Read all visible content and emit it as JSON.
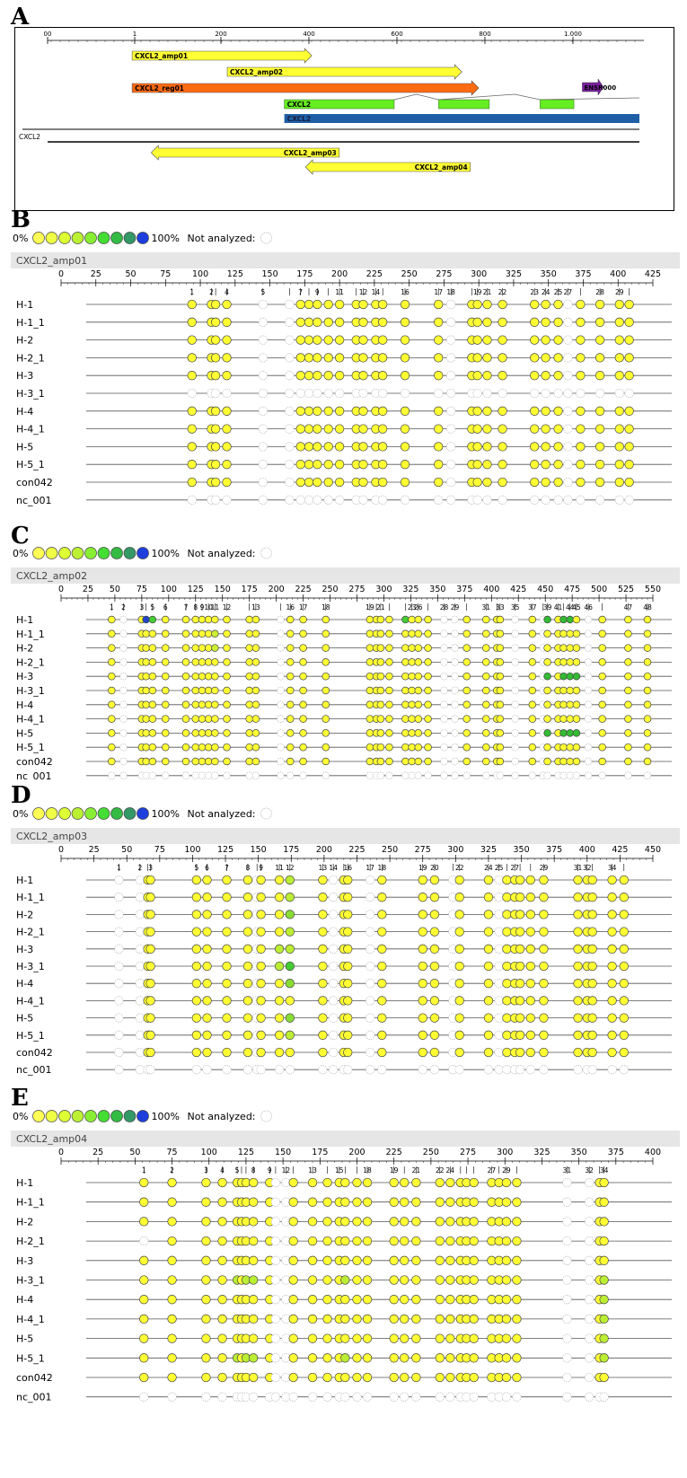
{
  "panelA": {
    "letter": "A",
    "ticks": [
      "00",
      "1",
      "200",
      "400",
      "600",
      "800",
      "1.000"
    ],
    "tick_values": [
      0,
      1,
      200,
      400,
      600,
      800,
      1000
    ],
    "features": [
      {
        "label": "CXCL2_amp01",
        "start": 200,
        "end": 625,
        "dir": "right",
        "color": "#ffff33"
      },
      {
        "label": "CXCL2_amp02",
        "start": 425,
        "end": 980,
        "dir": "right",
        "color": "#ffff33"
      },
      {
        "label": "CXCL2_reg01",
        "start": 200,
        "end": 1020,
        "dir": "right",
        "color": "#ff6a13"
      },
      {
        "label": "CXCL2_amp03",
        "start": 245,
        "end": 690,
        "dir": "left",
        "color": "#ffff33"
      },
      {
        "label": "CXCL2_amp04",
        "start": 610,
        "end": 1000,
        "dir": "left",
        "color": "#ffff33"
      }
    ],
    "gene_label": "CXCL2",
    "exon_label": "CXCL2",
    "mrna_label": "CXCL2",
    "track_label": "CXCL2",
    "purple_label": "ENSR000",
    "exons": [
      [
        560,
        820
      ],
      [
        925,
        1045
      ],
      [
        1165,
        1245
      ]
    ],
    "mrna_span": [
      560,
      1400
    ],
    "purple_span": [
      1265,
      1315
    ],
    "colors": {
      "exon": "#66ee22",
      "mrna": "#1f5fa6",
      "purple": "#7a1fa0"
    }
  },
  "legend": {
    "zero": "0%",
    "hundred": "100%",
    "not_analyzed": "Not analyzed:"
  },
  "legend_colors": [
    "#ffff55",
    "#eeff44",
    "#ddff33",
    "#bbf033",
    "#88ee33",
    "#44dd33",
    "#33bb44",
    "#339966",
    "#1f3fdd"
  ],
  "panels": [
    {
      "letter": "B",
      "amp": "CXCL2_amp01",
      "max": 425,
      "ticks": [
        0,
        25,
        50,
        75,
        100,
        125,
        150,
        175,
        200,
        225,
        250,
        275,
        300,
        325,
        350,
        375,
        400,
        425
      ],
      "rows": [
        "H-1",
        "H-1_1",
        "H-2",
        "H-2_1",
        "H-3",
        "H-3_1",
        "H-4",
        "H-4_1",
        "H-5",
        "H-5_1",
        "con042",
        "nc_001"
      ],
      "na_rows": [
        "H-3_1",
        "nc_001"
      ],
      "sites": [
        [
          1,
          94
        ],
        [
          2,
          108
        ],
        [
          3,
          111
        ],
        [
          4,
          119
        ],
        [
          5,
          145
        ],
        [
          6,
          164
        ],
        [
          7,
          172
        ],
        [
          8,
          178
        ],
        [
          9,
          184
        ],
        [
          10,
          192
        ],
        [
          11,
          200
        ],
        [
          12,
          212
        ],
        [
          13,
          217
        ],
        [
          14,
          226
        ],
        [
          15,
          231
        ],
        [
          16,
          247
        ],
        [
          17,
          271
        ],
        [
          18,
          280
        ],
        [
          19,
          295
        ],
        [
          20,
          299
        ],
        [
          21,
          306
        ],
        [
          22,
          317
        ],
        [
          23,
          340
        ],
        [
          24,
          348
        ],
        [
          25,
          357
        ],
        [
          26,
          364
        ],
        [
          27,
          373
        ],
        [
          28,
          387
        ],
        [
          29,
          401
        ],
        [
          30,
          408
        ]
      ],
      "labels": [
        [
          1,
          "1"
        ],
        [
          2,
          "2"
        ],
        [
          4,
          "4"
        ],
        [
          5,
          "5"
        ],
        [
          7,
          "7"
        ],
        [
          9,
          "9"
        ],
        [
          11,
          "11"
        ],
        [
          13,
          "12"
        ],
        [
          14,
          "14"
        ],
        [
          16,
          "16"
        ],
        [
          17,
          "17"
        ],
        [
          18,
          "18"
        ],
        [
          20,
          "19"
        ],
        [
          21,
          "21"
        ],
        [
          22,
          "22"
        ],
        [
          23,
          "23"
        ],
        [
          24,
          "24"
        ],
        [
          25,
          "25"
        ],
        [
          26,
          "27"
        ],
        [
          28,
          "28"
        ],
        [
          29,
          "29"
        ]
      ],
      "na_sites": [
        5,
        6,
        18,
        26
      ],
      "special": {}
    },
    {
      "letter": "C",
      "amp": "CXCL2_amp02",
      "max": 550,
      "ticks": [
        0,
        25,
        50,
        75,
        100,
        125,
        150,
        175,
        200,
        225,
        250,
        275,
        300,
        325,
        350,
        375,
        400,
        425,
        450,
        475,
        500,
        525,
        550
      ],
      "rows": [
        "H-1",
        "H-1_1",
        "H-2",
        "H-2_1",
        "H-3",
        "H-3_1",
        "H-4",
        "H-4_1",
        "H-5",
        "H-5_1",
        "con042",
        "nc_001"
      ],
      "na_rows": [
        "nc_001"
      ],
      "sites": [
        [
          1,
          47
        ],
        [
          2,
          58
        ],
        [
          3,
          75
        ],
        [
          4,
          79
        ],
        [
          5,
          85
        ],
        [
          6,
          97
        ],
        [
          7,
          116
        ],
        [
          8,
          125
        ],
        [
          9,
          131
        ],
        [
          10,
          137
        ],
        [
          11,
          143
        ],
        [
          12,
          154
        ],
        [
          13,
          175
        ],
        [
          14,
          181
        ],
        [
          15,
          204
        ],
        [
          16,
          213
        ],
        [
          17,
          225
        ],
        [
          18,
          246
        ],
        [
          19,
          287
        ],
        [
          20,
          293
        ],
        [
          21,
          297
        ],
        [
          22,
          305
        ],
        [
          23,
          320
        ],
        [
          24,
          326
        ],
        [
          25,
          332
        ],
        [
          26,
          341
        ],
        [
          27,
          356
        ],
        [
          28,
          366
        ],
        [
          29,
          377
        ],
        [
          30,
          395
        ],
        [
          31,
          405
        ],
        [
          32,
          408
        ],
        [
          33,
          422
        ],
        [
          34,
          438
        ],
        [
          35,
          448
        ],
        [
          36,
          452
        ],
        [
          37,
          462
        ],
        [
          38,
          467
        ],
        [
          39,
          473
        ],
        [
          40,
          479
        ],
        [
          41,
          490
        ],
        [
          42,
          503
        ],
        [
          43,
          527
        ],
        [
          44,
          545
        ]
      ],
      "labels": [
        [
          1,
          "1"
        ],
        [
          2,
          "2"
        ],
        [
          3,
          "3"
        ],
        [
          5,
          "5"
        ],
        [
          6,
          "6"
        ],
        [
          7,
          "7"
        ],
        [
          8,
          "8"
        ],
        [
          9,
          "9"
        ],
        [
          10,
          "10"
        ],
        [
          11,
          "11"
        ],
        [
          12,
          "12"
        ],
        [
          14,
          "13"
        ],
        [
          16,
          "16"
        ],
        [
          17,
          "17"
        ],
        [
          18,
          "18"
        ],
        [
          19,
          "19"
        ],
        [
          21,
          "21"
        ],
        [
          24,
          "23"
        ],
        [
          25,
          "26"
        ],
        [
          27,
          "28"
        ],
        [
          28,
          "29"
        ],
        [
          30,
          "31"
        ],
        [
          32,
          "33"
        ],
        [
          33,
          "35"
        ],
        [
          34,
          "37"
        ],
        [
          36,
          "39"
        ],
        [
          37,
          "41"
        ],
        [
          39,
          "44"
        ],
        [
          40,
          "45"
        ],
        [
          41,
          "46"
        ],
        [
          43,
          "47"
        ],
        [
          44,
          "48"
        ]
      ],
      "na_sites": [
        2,
        15,
        27,
        28,
        33,
        35,
        41
      ],
      "special": {
        "H-1": {
          "4": "#2244cc",
          "5": "#44cc33",
          "23": "#44cc33",
          "36": "#33bb33",
          "38": "#33bb33",
          "39": "#33bb33"
        },
        "H-3": {
          "36": "#33bb33",
          "38": "#33bb33",
          "39": "#33bb33",
          "40": "#33bb33"
        },
        "H-5": {
          "36": "#33bb33",
          "38": "#33bb33",
          "39": "#33bb33",
          "40": "#33bb33"
        },
        "H-1_1": {
          "11": "#ccee33"
        },
        "H-2": {
          "11": "#ccee33"
        }
      }
    },
    {
      "letter": "D",
      "amp": "CXCL2_amp03",
      "max": 450,
      "ticks": [
        0,
        25,
        50,
        75,
        100,
        125,
        150,
        175,
        200,
        225,
        250,
        275,
        300,
        325,
        350,
        375,
        400,
        425,
        450
      ],
      "rows": [
        "H-1",
        "H-1_1",
        "H-2",
        "H-2_1",
        "H-3",
        "H-3_1",
        "H-4",
        "H-4_1",
        "H-5",
        "H-5_1",
        "con042",
        "nc_001"
      ],
      "na_rows": [
        "nc_001"
      ],
      "sites": [
        [
          1,
          44
        ],
        [
          2,
          60
        ],
        [
          3,
          66
        ],
        [
          4,
          68
        ],
        [
          5,
          103
        ],
        [
          6,
          111
        ],
        [
          7,
          126
        ],
        [
          8,
          142
        ],
        [
          9,
          149
        ],
        [
          10,
          152
        ],
        [
          11,
          166
        ],
        [
          12,
          174
        ],
        [
          13,
          199
        ],
        [
          14,
          207
        ],
        [
          15,
          215
        ],
        [
          16,
          218
        ],
        [
          17,
          235
        ],
        [
          18,
          244
        ],
        [
          19,
          275
        ],
        [
          20,
          284
        ],
        [
          21,
          298
        ],
        [
          22,
          303
        ],
        [
          23,
          325
        ],
        [
          24,
          333
        ],
        [
          25,
          339
        ],
        [
          26,
          345
        ],
        [
          27,
          349
        ],
        [
          28,
          357
        ],
        [
          29,
          367
        ],
        [
          30,
          393
        ],
        [
          31,
          400
        ],
        [
          32,
          404
        ],
        [
          33,
          419
        ],
        [
          34,
          428
        ]
      ],
      "labels": [
        [
          1,
          "1"
        ],
        [
          2,
          "2"
        ],
        [
          4,
          "3"
        ],
        [
          5,
          "5"
        ],
        [
          6,
          "6"
        ],
        [
          7,
          "7"
        ],
        [
          8,
          "8"
        ],
        [
          10,
          "9"
        ],
        [
          11,
          "11"
        ],
        [
          12,
          "12"
        ],
        [
          13,
          "13"
        ],
        [
          14,
          "14"
        ],
        [
          16,
          "16"
        ],
        [
          17,
          "17"
        ],
        [
          18,
          "18"
        ],
        [
          19,
          "19"
        ],
        [
          20,
          "20"
        ],
        [
          22,
          "22"
        ],
        [
          23,
          "24"
        ],
        [
          24,
          "25"
        ],
        [
          26,
          "27"
        ],
        [
          29,
          "29"
        ],
        [
          30,
          "31"
        ],
        [
          31,
          "32"
        ],
        [
          33,
          "34"
        ]
      ],
      "na_sites": [
        1,
        2,
        9,
        14,
        17,
        21,
        24
      ],
      "special": {
        "H-1": {
          "12": "#bbee33"
        },
        "H-1_1": {
          "12": "#bbee33"
        },
        "H-2": {
          "12": "#88dd33"
        },
        "H-2_1": {
          "12": "#bbee33"
        },
        "H-3": {
          "11": "#bbee33",
          "12": "#bbee33"
        },
        "H-3_1": {
          "11": "#bbee33",
          "12": "#44cc33"
        },
        "H-4": {
          "12": "#88dd33"
        },
        "H-5": {
          "12": "#88dd33"
        },
        "H-5_1": {
          "12": "#bbee33"
        }
      }
    },
    {
      "letter": "E",
      "amp": "CXCL2_amp04",
      "max": 400,
      "ticks": [
        0,
        25,
        50,
        75,
        100,
        125,
        150,
        175,
        200,
        225,
        250,
        275,
        300,
        325,
        350,
        375,
        400
      ],
      "rows": [
        "H-1",
        "H-1_1",
        "H-2",
        "H-2_1",
        "H-3",
        "H-3_1",
        "H-4",
        "H-4_1",
        "H-5",
        "H-5_1",
        "con042",
        "nc_001"
      ],
      "na_rows": [
        "nc_001"
      ],
      "sites": [
        [
          1,
          56
        ],
        [
          2,
          75
        ],
        [
          3,
          98
        ],
        [
          4,
          109
        ],
        [
          5,
          119
        ],
        [
          6,
          122
        ],
        [
          7,
          125
        ],
        [
          8,
          130
        ],
        [
          9,
          141
        ],
        [
          10,
          145
        ],
        [
          11,
          152
        ],
        [
          12,
          157
        ],
        [
          13,
          170
        ],
        [
          14,
          180
        ],
        [
          15,
          188
        ],
        [
          16,
          192
        ],
        [
          17,
          200
        ],
        [
          18,
          207
        ],
        [
          19,
          225
        ],
        [
          20,
          232
        ],
        [
          21,
          240
        ],
        [
          22,
          256
        ],
        [
          23,
          263
        ],
        [
          24,
          270
        ],
        [
          25,
          274
        ],
        [
          26,
          279
        ],
        [
          27,
          291
        ],
        [
          28,
          296
        ],
        [
          29,
          301
        ],
        [
          30,
          308
        ],
        [
          31,
          342
        ],
        [
          32,
          357
        ],
        [
          33,
          364
        ],
        [
          34,
          367
        ]
      ],
      "labels": [
        [
          1,
          "1"
        ],
        [
          2,
          "2"
        ],
        [
          3,
          "3"
        ],
        [
          4,
          "4"
        ],
        [
          5,
          "5"
        ],
        [
          8,
          "8"
        ],
        [
          9,
          "9"
        ],
        [
          11,
          "12"
        ],
        [
          13,
          "13"
        ],
        [
          15,
          "15"
        ],
        [
          18,
          "18"
        ],
        [
          19,
          "19"
        ],
        [
          21,
          "21"
        ],
        [
          22,
          "22"
        ],
        [
          23,
          "24"
        ],
        [
          27,
          "27"
        ],
        [
          29,
          "29"
        ],
        [
          31,
          "31"
        ],
        [
          32,
          "32"
        ],
        [
          34,
          "34"
        ]
      ],
      "na_sites": [
        10,
        11,
        31,
        32
      ],
      "special": {
        "H-2_1": {
          "1": "#ffffff"
        },
        "H-4": {
          "34": "#bbee33"
        },
        "H-3_1": {
          "5": "#bbee33",
          "7": "#bbee33",
          "8": "#bbee33",
          "16": "#bbee33",
          "34": "#bbee33"
        },
        "H-5_1": {
          "5": "#bbee33",
          "7": "#bbee33",
          "8": "#bbee33",
          "16": "#bbee33",
          "34": "#bbee33"
        },
        "H-4_1": {
          "34": "#bbee33"
        },
        "H-5": {
          "34": "#bbee33"
        }
      }
    }
  ]
}
